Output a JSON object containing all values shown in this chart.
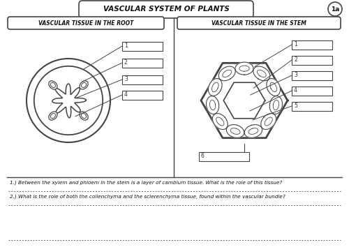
{
  "title": "VASCULAR SYSTEM OF PLANTS",
  "badge": "1a",
  "left_heading": "VASCULAR TISSUE IN THE ROOT",
  "right_heading": "VASCULAR TISSUE IN THE STEM",
  "question1": "1.) Between the xylem and phloem in the stem is a layer of cambium tissue. What is the role of this tissue?",
  "question2": "2.) What is the role of both the collenchyma and the sclerenchyma tissue, found within the vascular bundle?",
  "bg_color": "#f0f0ec",
  "line_color": "#444444",
  "box_bg": "#ffffff"
}
